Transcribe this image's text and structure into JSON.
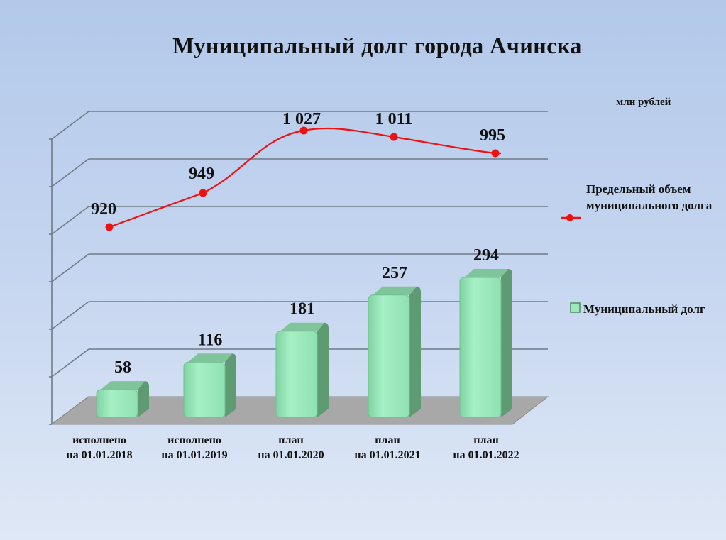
{
  "title": "Муниципальный  долг  города Ачинска",
  "unit": "млн рублей",
  "colors": {
    "bar_front": "#9ae8bc",
    "bar_side": "#5e9a72",
    "bar_top": "#7fc49a",
    "line": "#ee1111",
    "grid": "#6f7a86",
    "floor": "#a8a8a8"
  },
  "legend": {
    "line_label": "Предельный объем муниципального долга",
    "bar_label": "Муниципальный долг"
  },
  "chart_data": {
    "type": "bar",
    "categories": [
      "исполнено на 01.01.2018",
      "исполнено на 01.01.2019",
      "план на 01.01.2020",
      "план на 01.01.2021",
      "план на 01.01.2022"
    ],
    "series": [
      {
        "name": "Муниципальный долг",
        "type": "bar",
        "values": [
          58,
          116,
          181,
          257,
          294
        ],
        "labels": [
          "58",
          "116",
          "181",
          "257",
          "294"
        ]
      },
      {
        "name": "Предельный объем муниципального долга",
        "type": "line",
        "values": [
          920,
          949,
          1027,
          1011,
          995
        ],
        "labels": [
          "920",
          "949",
          "1 027",
          "1 011",
          "995"
        ]
      }
    ],
    "title": "Муниципальный  долг  города Ачинска",
    "ylabel": "млн рублей",
    "grid": true,
    "legend_position": "right"
  }
}
